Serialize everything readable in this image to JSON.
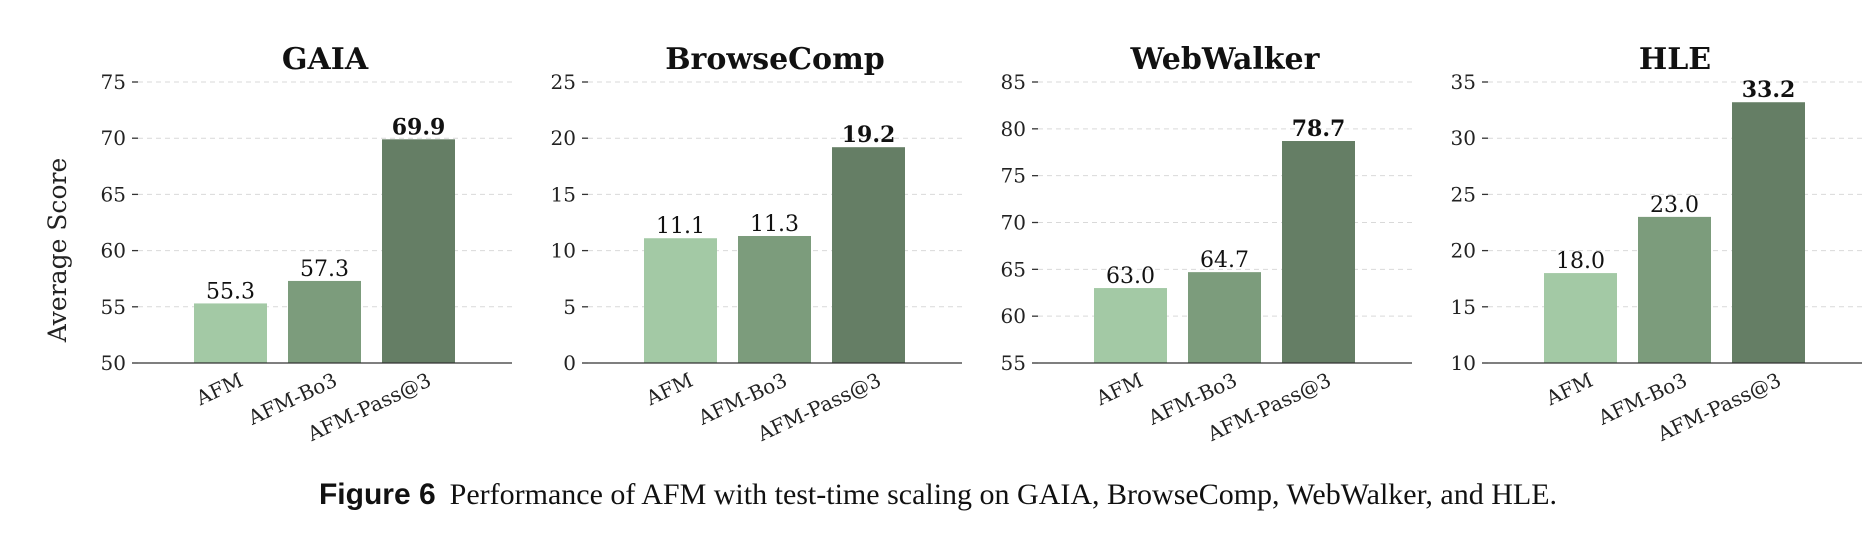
{
  "ylabel": "Average Score",
  "caption": {
    "number": "Figure 6",
    "text": "Performance of AFM with test-time scaling on GAIA, BrowseComp, WebWalker, and HLE."
  },
  "colors": [
    "#a3c9a5",
    "#7c9c7c",
    "#657e65"
  ],
  "chart_data": [
    {
      "type": "bar",
      "title": "GAIA",
      "categories": [
        "AFM",
        "AFM-Bo3",
        "AFM-Pass@3"
      ],
      "values": [
        55.3,
        57.3,
        69.9
      ],
      "value_labels": [
        "55.3",
        "57.3",
        "69.9"
      ],
      "ylim": [
        50,
        75
      ],
      "yticks": [
        50,
        55,
        60,
        65,
        70,
        75
      ],
      "highlight_index": 2,
      "grid": true
    },
    {
      "type": "bar",
      "title": "BrowseComp",
      "categories": [
        "AFM",
        "AFM-Bo3",
        "AFM-Pass@3"
      ],
      "values": [
        11.1,
        11.3,
        19.2
      ],
      "value_labels": [
        "11.1",
        "11.3",
        "19.2"
      ],
      "ylim": [
        0,
        25
      ],
      "yticks": [
        0,
        5,
        10,
        15,
        20,
        25
      ],
      "highlight_index": 2,
      "grid": true
    },
    {
      "type": "bar",
      "title": "WebWalker",
      "categories": [
        "AFM",
        "AFM-Bo3",
        "AFM-Pass@3"
      ],
      "values": [
        63.0,
        64.7,
        78.7
      ],
      "value_labels": [
        "63.0",
        "64.7",
        "78.7"
      ],
      "ylim": [
        55,
        85
      ],
      "yticks": [
        55,
        60,
        65,
        70,
        75,
        80,
        85
      ],
      "highlight_index": 2,
      "grid": true
    },
    {
      "type": "bar",
      "title": "HLE",
      "categories": [
        "AFM",
        "AFM-Bo3",
        "AFM-Pass@3"
      ],
      "values": [
        18.0,
        23.0,
        33.2
      ],
      "value_labels": [
        "18.0",
        "23.0",
        "33.2"
      ],
      "ylim": [
        10,
        35
      ],
      "yticks": [
        10,
        15,
        20,
        25,
        30,
        35
      ],
      "highlight_index": 2,
      "grid": true
    }
  ]
}
